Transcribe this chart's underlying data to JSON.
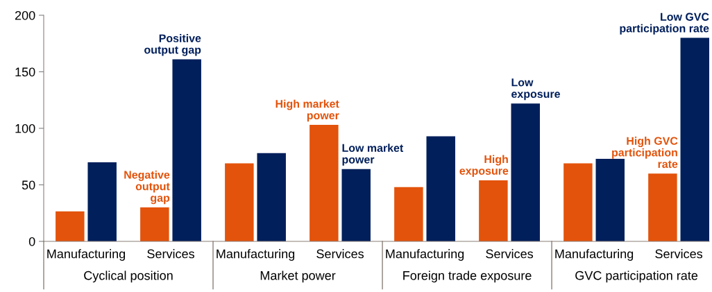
{
  "chart_data": {
    "type": "bar",
    "categories": [
      "Manufacturing",
      "Services",
      "Manufacturing",
      "Services",
      "Manufacturing",
      "Services",
      "Manufacturing",
      "Services"
    ],
    "series": [
      {
        "color": "#e3530b",
        "values": [
          26.5,
          30,
          69,
          103,
          48,
          54,
          69,
          60
        ]
      },
      {
        "color": "#001f5b",
        "values": [
          70,
          161,
          78,
          64,
          93,
          122,
          73,
          180
        ]
      }
    ],
    "ylim": [
      0,
      200
    ],
    "yticks": [
      0,
      50,
      100,
      150,
      200
    ],
    "grid": false,
    "annotations": [
      "Negative\noutput\ngap",
      "Positive\noutput gap",
      "High market\npower",
      "Low market\npower",
      "High\nexposure",
      "Low\nexposure",
      "High GVC\nparticipation\nrate",
      "Low GVC\nparticipation rate",
      "Cyclical position",
      "Market power",
      "Foreign trade exposure",
      "GVC participation rate"
    ]
  }
}
